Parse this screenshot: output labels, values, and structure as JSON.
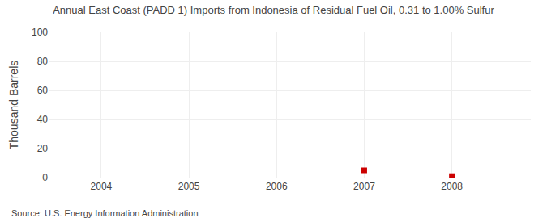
{
  "chart_data": {
    "type": "scatter",
    "title": "Annual East Coast (PADD 1) Imports from Indonesia of Residual Fuel Oil, 0.31 to 1.00% Sulfur",
    "ylabel": "Thousand Barrels",
    "annotations": [
      "Source: U.S. Energy Information Administration"
    ],
    "x": [
      2004,
      2005,
      2006,
      2007,
      2008
    ],
    "values": [
      null,
      null,
      null,
      5,
      1
    ],
    "color": "#cc0000",
    "marker": "square",
    "xlim": [
      2003.4,
      2008.9
    ],
    "xticks": [
      2004,
      2005,
      2006,
      2007,
      2008
    ],
    "ylim": [
      0,
      100
    ],
    "yticks": [
      0,
      20,
      40,
      60,
      80,
      100
    ],
    "grid": true
  }
}
